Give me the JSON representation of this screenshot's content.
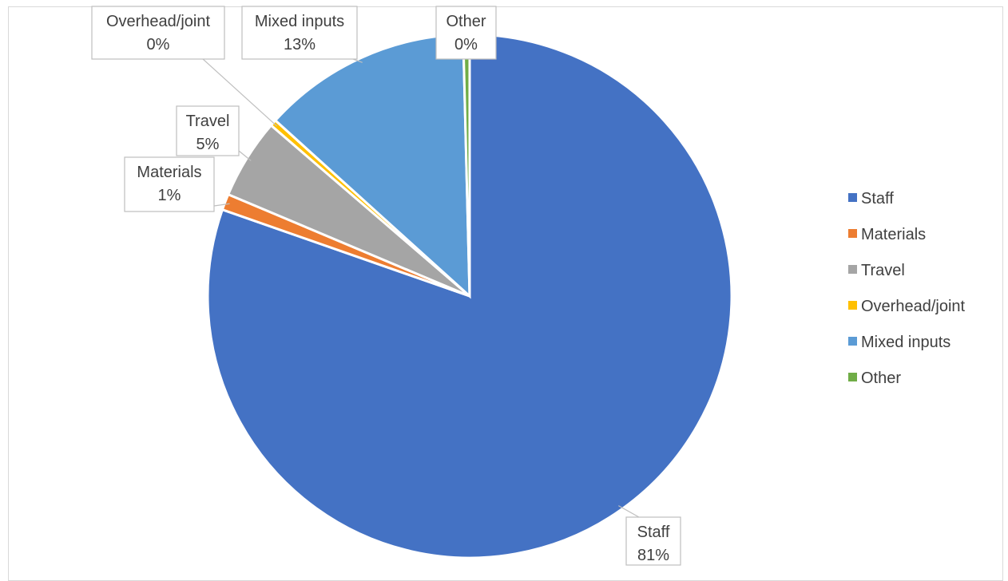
{
  "chart_data": {
    "type": "pie",
    "title": "",
    "series": [
      {
        "values": [
          81,
          1,
          5,
          0.4,
          13,
          0.4
        ],
        "categories": [
          "Staff",
          "Materials",
          "Travel",
          "Overhead/joint",
          "Mixed inputs",
          "Other"
        ]
      }
    ],
    "data_labels": [
      {
        "category": "Staff",
        "text": "81%"
      },
      {
        "category": "Materials",
        "text": "1%"
      },
      {
        "category": "Travel",
        "text": "5%"
      },
      {
        "category": "Overhead/joint",
        "text": "0%"
      },
      {
        "category": "Mixed inputs",
        "text": "13%"
      },
      {
        "category": "Other",
        "text": "0%"
      }
    ],
    "colors": [
      "#4472C4",
      "#ED7D31",
      "#A5A5A5",
      "#FFC000",
      "#5B9BD5",
      "#70AD47"
    ],
    "legend": {
      "position": "right",
      "entries": [
        "Staff",
        "Materials",
        "Travel",
        "Overhead/joint",
        "Mixed inputs",
        "Other"
      ]
    }
  }
}
